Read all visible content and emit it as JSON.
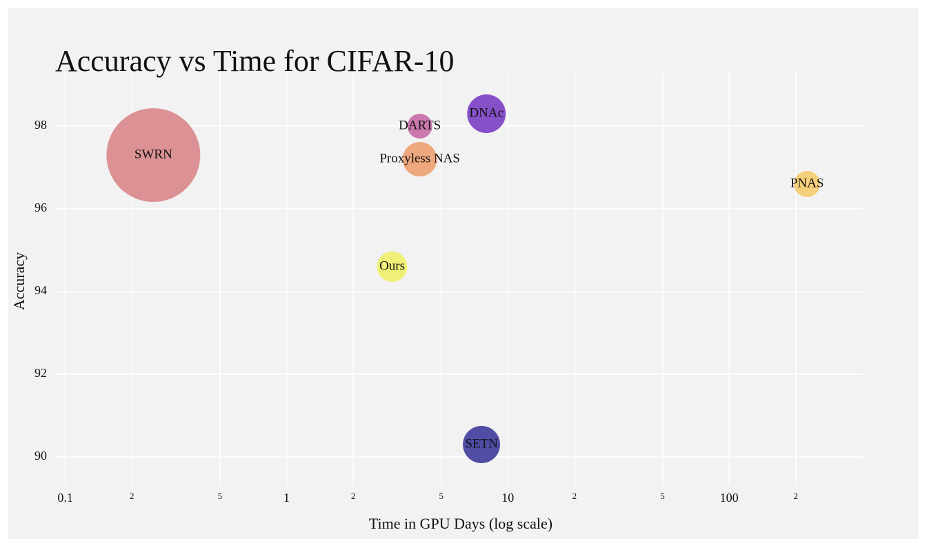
{
  "chart_data": {
    "type": "bubble",
    "title": "Accuracy vs Time for CIFAR-10",
    "x_label": "Time in GPU Days (log scale)",
    "y_label": "Accuracy",
    "labels": [
      "SWRN",
      "DARTS",
      "Proxyless NAS",
      "DNAc",
      "PNAS",
      "Ours",
      "SETN"
    ],
    "x": [
      0.25,
      4,
      4,
      8,
      225,
      3,
      7.6
    ],
    "values": [
      97.3,
      98.0,
      97.2,
      98.3,
      96.6,
      94.6,
      90.3
    ],
    "sizes": [
      136,
      36,
      50,
      56,
      38,
      44,
      54
    ],
    "colors": [
      "#d9878a",
      "#c76aa6",
      "#eda071",
      "#7a3ec4",
      "#f5cb6c",
      "#f0f06a",
      "#3f3b9b"
    ],
    "x_log": true,
    "xlim": [
      0.09,
      405
    ],
    "ylim": [
      89.3,
      99.3
    ],
    "xticks": [
      0.1,
      {
        "value": 0.2,
        "label": "2"
      },
      {
        "value": 0.5,
        "label": "5"
      },
      1,
      {
        "value": 2,
        "label": "2"
      },
      {
        "value": 5,
        "label": "5"
      },
      10,
      {
        "value": 20,
        "label": "2"
      },
      {
        "value": 50,
        "label": "5"
      },
      100,
      {
        "value": 200,
        "label": "2"
      }
    ],
    "yticks": [
      90,
      92,
      94,
      96,
      98
    ],
    "grid": true
  }
}
